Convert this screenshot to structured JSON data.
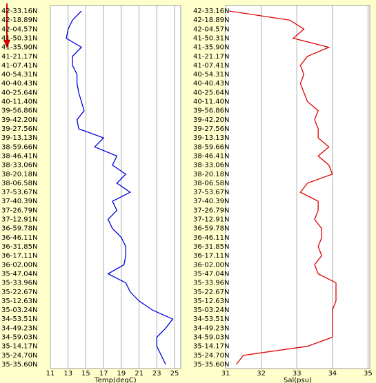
{
  "chart_data": [
    {
      "type": "line",
      "xlabel": "Temp(degC)",
      "categories": [
        "42-33.16N",
        "42-18.89N",
        "42-04.57N",
        "41-50.31N",
        "41-35.90N",
        "41-21.17N",
        "41-07.41N",
        "40-54.31N",
        "40-40.43N",
        "40-25.64N",
        "40-11.40N",
        "39-56.86N",
        "39-42.20N",
        "39-27.56N",
        "39-13.13N",
        "38-59.66N",
        "38-46.41N",
        "38-33.06N",
        "38-20.18N",
        "38-06.58N",
        "37-53.67N",
        "37-40.39N",
        "37-26.79N",
        "37-12.91N",
        "36-59.78N",
        "36-46.11N",
        "36-31.85N",
        "36-17.11N",
        "36-02.00N",
        "35-47.04N",
        "35-33.96N",
        "35-22.67N",
        "35-12.63N",
        "35-03.24N",
        "34-53.51N",
        "34-49.23N",
        "34-59.03N",
        "35-14.17N",
        "35-24.70N",
        "35-35.60N"
      ],
      "series": [
        {
          "color": "#0000dd",
          "values": [
            14.5,
            13.5,
            13,
            12.8,
            14.5,
            13.5,
            13.5,
            14,
            14,
            14.2,
            14.5,
            14.8,
            14,
            14.2,
            17,
            16,
            18.5,
            18,
            19.5,
            18.5,
            20,
            18,
            18.5,
            17.5,
            18,
            19,
            19.5,
            19.5,
            19.3,
            17.5,
            19.5,
            20,
            21,
            22.5,
            24.8,
            24,
            23,
            23,
            23.5,
            24
          ]
        }
      ],
      "xlim": [
        11,
        25.7
      ],
      "xticks": [
        11,
        13,
        15,
        17,
        19,
        21,
        23,
        25
      ],
      "grid": true
    },
    {
      "type": "line",
      "xlabel": "Sal(psu)",
      "categories": [
        "42-33.16N",
        "42-18.89N",
        "42-04.57N",
        "41-50.31N",
        "41-35.90N",
        "41-21.17N",
        "41-07.41N",
        "40-54.31N",
        "40-40.43N",
        "40-25.64N",
        "40-11.40N",
        "39-56.86N",
        "39-42.20N",
        "39-27.56N",
        "39-13.13N",
        "38-59.66N",
        "38-46.41N",
        "38-33.06N",
        "38-20.18N",
        "38-06.58N",
        "37-53.67N",
        "37-40.39N",
        "37-26.79N",
        "37-12.91N",
        "36-59.78N",
        "36-46.11N",
        "36-31.85N",
        "36-17.11N",
        "36-02.00N",
        "35-47.04N",
        "35-33.96N",
        "35-22.67N",
        "35-12.63N",
        "35-03.24N",
        "34-53.51N",
        "34-49.23N",
        "34-59.03N",
        "35-14.17N",
        "35-24.70N",
        "35-35.60N"
      ],
      "series": [
        {
          "color": "#dd0000",
          "values": [
            31.1,
            32.8,
            33.2,
            32.9,
            33.9,
            33.3,
            33.1,
            33.2,
            33.1,
            33.2,
            33.3,
            33.6,
            33.5,
            33.6,
            33.6,
            33.9,
            33.6,
            33.9,
            34.0,
            33.3,
            33.1,
            33.6,
            33.6,
            33.5,
            33.7,
            33.7,
            33.6,
            33.7,
            33.5,
            33.6,
            34.1,
            34.1,
            34.1,
            34.0,
            34.0,
            34.0,
            34.0,
            33.3,
            31.5,
            31.3
          ]
        }
      ],
      "xlim": [
        31,
        35.05
      ],
      "xticks": [
        31,
        32,
        33,
        34,
        35
      ],
      "grid": true
    }
  ]
}
